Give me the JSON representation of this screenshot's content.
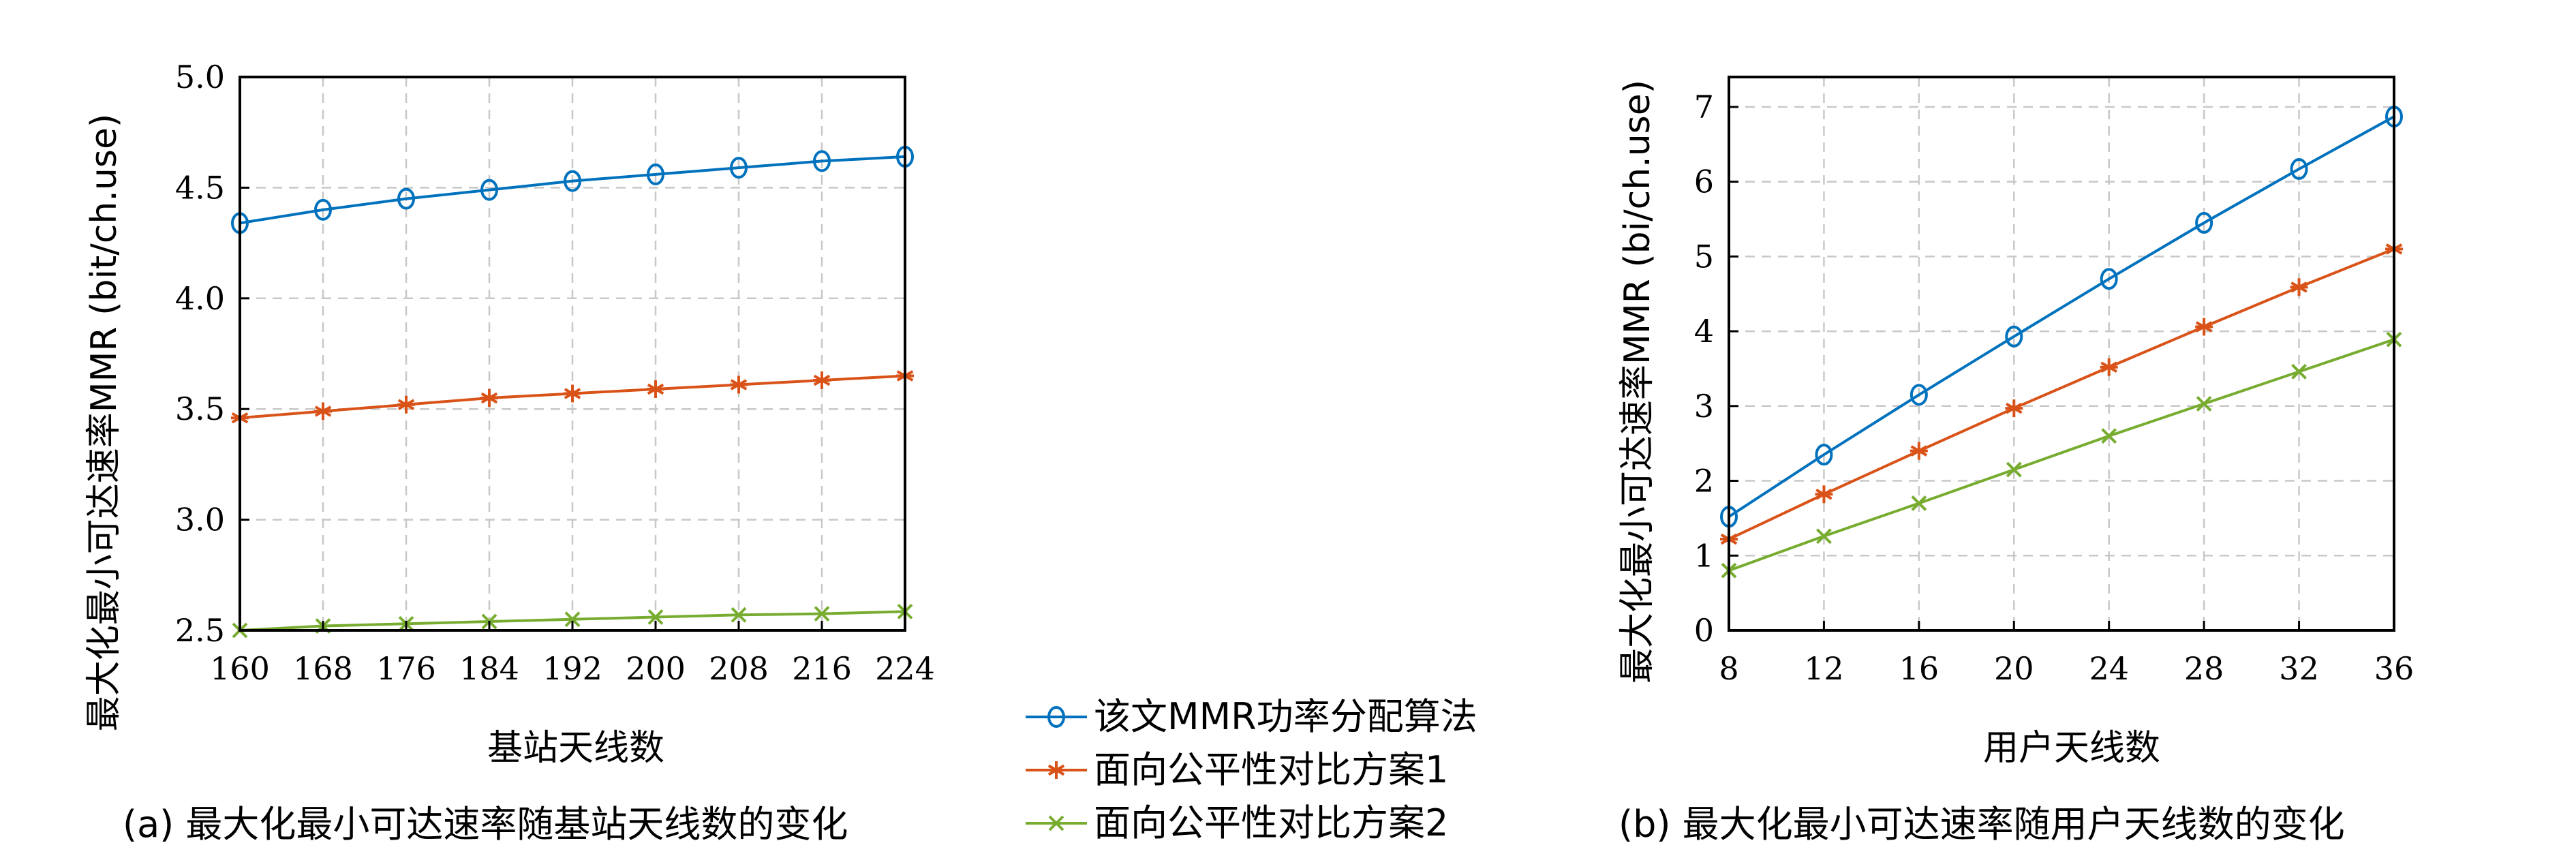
{
  "colors": {
    "series1": "#0072BD",
    "series2": "#D95319",
    "series3": "#77AC30"
  },
  "legend": {
    "items": [
      {
        "label": "该文MMR功率分配算法",
        "marker": "circle"
      },
      {
        "label": "面向公平性对比方案1",
        "marker": "asterisk"
      },
      {
        "label": "面向公平性对比方案2",
        "marker": "cross"
      }
    ]
  },
  "chart_data": [
    {
      "type": "line",
      "caption": "(a) 最大化最小可达速率随基站天线数的变化",
      "xlabel": "基站天线数",
      "ylabel": "最大化最小可达速率MMR (bit/ch.use)",
      "x": [
        160,
        168,
        176,
        184,
        192,
        200,
        208,
        216,
        224
      ],
      "xticks": [
        "160",
        "168",
        "176",
        "184",
        "192",
        "200",
        "208",
        "216",
        "224"
      ],
      "yticks": [
        "2.5",
        "3.0",
        "3.5",
        "4.0",
        "4.5",
        "5.0"
      ],
      "xlim": [
        160,
        224
      ],
      "ylim": [
        2.5,
        5.0
      ],
      "grid": true,
      "series": [
        {
          "name": "该文MMR功率分配算法",
          "marker": "circle",
          "values": [
            4.34,
            4.4,
            4.45,
            4.49,
            4.53,
            4.56,
            4.59,
            4.62,
            4.64
          ]
        },
        {
          "name": "面向公平性对比方案1",
          "marker": "asterisk",
          "values": [
            3.46,
            3.49,
            3.52,
            3.55,
            3.57,
            3.59,
            3.61,
            3.63,
            3.65
          ]
        },
        {
          "name": "面向公平性对比方案2",
          "marker": "cross",
          "values": [
            2.5,
            2.52,
            2.53,
            2.54,
            2.55,
            2.56,
            2.57,
            2.575,
            2.585
          ]
        }
      ]
    },
    {
      "type": "line",
      "caption": "(b) 最大化最小可达速率随用户天线数的变化",
      "xlabel": "用户天线数",
      "ylabel": "最大化最小可达速率MMR (bi/ch.use)",
      "x": [
        8,
        12,
        16,
        20,
        24,
        28,
        32,
        36
      ],
      "xticks": [
        "8",
        "12",
        "16",
        "20",
        "24",
        "28",
        "32",
        "36"
      ],
      "yticks": [
        "0",
        "1",
        "2",
        "3",
        "4",
        "5",
        "6",
        "7"
      ],
      "xlim": [
        8,
        36
      ],
      "ylim": [
        0,
        7.4
      ],
      "grid": true,
      "series": [
        {
          "name": "该文MMR功率分配算法",
          "marker": "circle",
          "values": [
            1.52,
            2.35,
            3.15,
            3.93,
            4.7,
            5.45,
            6.17,
            6.87
          ]
        },
        {
          "name": "面向公平性对比方案1",
          "marker": "asterisk",
          "values": [
            1.22,
            1.82,
            2.4,
            2.97,
            3.52,
            4.06,
            4.59,
            5.1
          ]
        },
        {
          "name": "面向公平性对比方案2",
          "marker": "cross",
          "values": [
            0.8,
            1.26,
            1.7,
            2.15,
            2.6,
            3.03,
            3.46,
            3.89
          ]
        }
      ]
    }
  ]
}
